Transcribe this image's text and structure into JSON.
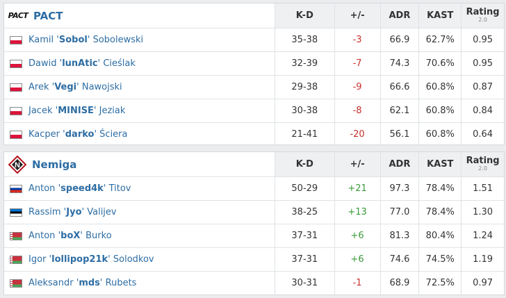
{
  "columns": {
    "kd": "K-D",
    "plusminus": "+/-",
    "adr": "ADR",
    "kast": "KAST",
    "rating": "Rating",
    "rating_sub": "2.0"
  },
  "teams": [
    {
      "name": "PACT",
      "logo_text": "PACT",
      "players": [
        {
          "first": "Kamil",
          "nick": "Sobol",
          "last": "Sobolewski",
          "flag": "pl",
          "kd": "35-38",
          "pm": "-3",
          "adr": "66.9",
          "kast": "62.7%",
          "rating": "0.95"
        },
        {
          "first": "Dawid",
          "nick": "lunAtic",
          "last": "Cieślak",
          "flag": "pl",
          "kd": "32-39",
          "pm": "-7",
          "adr": "74.3",
          "kast": "70.6%",
          "rating": "0.95"
        },
        {
          "first": "Arek",
          "nick": "Vegi",
          "last": "Nawojski",
          "flag": "pl",
          "kd": "29-38",
          "pm": "-9",
          "adr": "66.6",
          "kast": "60.8%",
          "rating": "0.87"
        },
        {
          "first": "Jacek",
          "nick": "MINISE",
          "last": "Jeziak",
          "flag": "pl",
          "kd": "30-38",
          "pm": "-8",
          "adr": "62.1",
          "kast": "60.8%",
          "rating": "0.84"
        },
        {
          "first": "Kacper",
          "nick": "darko",
          "last": "Ściera",
          "flag": "pl",
          "kd": "21-41",
          "pm": "-20",
          "adr": "56.1",
          "kast": "60.8%",
          "rating": "0.64"
        }
      ]
    },
    {
      "name": "Nemiga",
      "logo_text": "N",
      "players": [
        {
          "first": "Anton",
          "nick": "speed4k",
          "last": "Titov",
          "flag": "ru",
          "kd": "50-29",
          "pm": "+21",
          "adr": "97.3",
          "kast": "78.4%",
          "rating": "1.51"
        },
        {
          "first": "Rassim",
          "nick": "Jyo",
          "last": "Valijev",
          "flag": "ee",
          "kd": "38-25",
          "pm": "+13",
          "adr": "77.0",
          "kast": "78.4%",
          "rating": "1.30"
        },
        {
          "first": "Anton",
          "nick": "boX",
          "last": "Burko",
          "flag": "by",
          "kd": "37-31",
          "pm": "+6",
          "adr": "81.3",
          "kast": "80.4%",
          "rating": "1.24"
        },
        {
          "first": "Igor",
          "nick": "lollipop21k",
          "last": "Solodkov",
          "flag": "by",
          "kd": "37-31",
          "pm": "+6",
          "adr": "74.6",
          "kast": "74.5%",
          "rating": "1.19"
        },
        {
          "first": "Aleksandr",
          "nick": "mds",
          "last": "Rubets",
          "flag": "by",
          "kd": "30-31",
          "pm": "-1",
          "adr": "68.9",
          "kast": "72.5%",
          "rating": "0.97"
        }
      ]
    }
  ],
  "colors": {
    "link": "#2d6da3",
    "negative": "#c9302c",
    "positive": "#3a9a3a",
    "header_bg": "#eef0f2"
  }
}
